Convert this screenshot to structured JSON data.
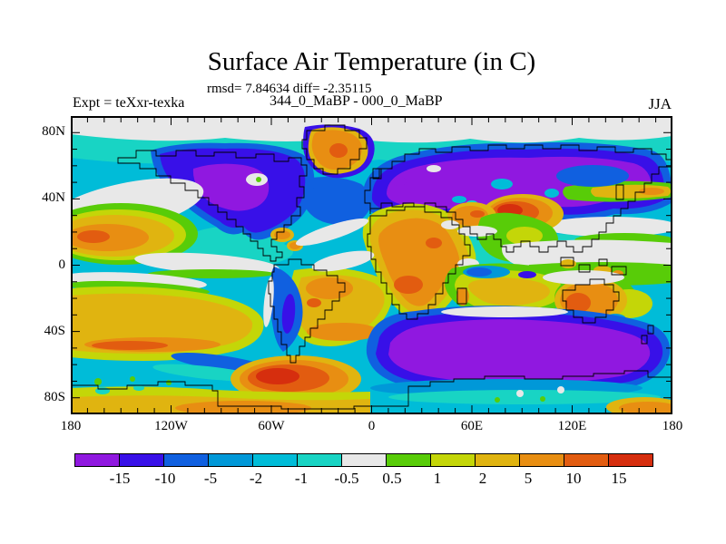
{
  "header": {
    "title": "Surface Air Temperature (in C)",
    "stats_line": "rmsd= 7.84634 diff= -2.35115",
    "comparison_line": "344_0_MaBP - 000_0_MaBP",
    "experiment_label": "Expt = teXxr-texka",
    "season_label": "JJA"
  },
  "chart_data": {
    "type": "heatmap",
    "subtype": "filled-contour-global-map",
    "title": "Surface Air Temperature (in C)",
    "field": "surface air temperature difference",
    "units": "C",
    "comparison": "344_0_MaBP - 000_0_MaBP",
    "experiment": "teXxr-texka",
    "season": "JJA",
    "rmsd": 7.84634,
    "diff": -2.35115,
    "projection": "equirectangular",
    "lon_range": [
      -180,
      180
    ],
    "lat_range": [
      -90,
      90
    ],
    "x_axis": {
      "tick_labels": [
        "180",
        "120W",
        "60W",
        "0",
        "60E",
        "120E",
        "180"
      ],
      "tick_lons": [
        -180,
        -120,
        -60,
        0,
        60,
        120,
        180
      ],
      "minor_tick_deg": 10
    },
    "y_axis": {
      "tick_labels": [
        "80N",
        "40N",
        "0",
        "40S",
        "80S"
      ],
      "tick_lats": [
        80,
        40,
        0,
        -40,
        -80
      ],
      "minor_tick_deg": 10
    },
    "colorbar": {
      "boundary_labels": [
        "-15",
        "-10",
        "-5",
        "-2",
        "-1",
        "-0.5",
        "0.5",
        "1",
        "2",
        "5",
        "10",
        "15"
      ],
      "levels": [
        -15,
        -10,
        -5,
        -2,
        -1,
        -0.5,
        0.5,
        1,
        2,
        5,
        10,
        15
      ],
      "segment_colors": [
        "#9018e0",
        "#3810e8",
        "#1060e0",
        "#0098d8",
        "#00bcd8",
        "#18d4c4",
        "#e8e8e8",
        "#58cc08",
        "#c4d608",
        "#e0b410",
        "#e88e12",
        "#e25c10",
        "#d62e0e"
      ],
      "segment_ranges": [
        "< -15",
        "-15 to -10",
        "-10 to -5",
        "-5 to -2",
        "-2 to -1",
        "-1 to -0.5",
        "-0.5 to 0.5",
        "0.5 to 1",
        "1 to 2",
        "2 to 5",
        "5 to 10",
        "10 to 15",
        "> 15"
      ]
    },
    "notable_features": [
      "Strong cold anomaly (< -15 C) over North America, Siberia/Eurasia and the Southern Indian Ocean",
      "Warm anomaly (5 to 15 C) over Greenland, Tibetan Plateau, Africa, Arabia and Australia",
      "Broad 2-5 C warm anomaly across the subtropical South Pacific and South Atlantic",
      "Warm anomaly > 10 C near the Antarctic Peninsula sector",
      "Near-neutral (-0.5 to 0.5 C) gray band along the equatorial oceans and Arctic cap"
    ]
  }
}
